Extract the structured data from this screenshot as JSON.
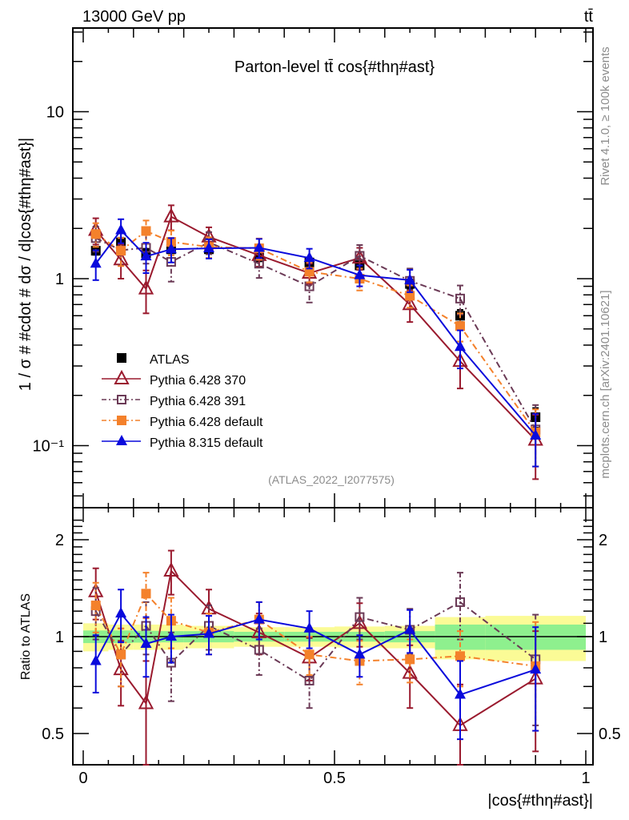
{
  "header": {
    "left": "13000 GeV pp",
    "right": "tt̄"
  },
  "side_labels": {
    "rivet": "Rivet 4.1.0, ≥ 100k events",
    "mcplots": "mcplots.cern.ch [arXiv:2401.10621]"
  },
  "chart_data": [
    {
      "type": "line",
      "panel": "main",
      "title": "Parton-level tt̄ cos{#thη#ast}",
      "analysis_id": "(ATLAS_2022_I2077575)",
      "xlabel": "|cos{#thη#ast}|",
      "ylabel": "1 / σ # #cdot # dσ / d|cos{#thη#ast}|",
      "xlim": [
        0,
        1
      ],
      "ylim": [
        0.045,
        30
      ],
      "yscale": "log",
      "ytick_labels": [
        "10",
        "1",
        "10⁻¹"
      ],
      "ytick_values": [
        10,
        1,
        0.1
      ],
      "legend_position": "left-middle",
      "x": [
        0.025,
        0.075,
        0.125,
        0.175,
        0.25,
        0.35,
        0.45,
        0.55,
        0.65,
        0.75,
        0.9
      ],
      "series": [
        {
          "name": "ATLAS",
          "color": "#000000",
          "marker": "filled-square",
          "line": "none",
          "values": [
            1.47,
            1.65,
            1.42,
            1.5,
            1.5,
            1.35,
            1.25,
            1.2,
            0.93,
            0.6,
            0.148
          ],
          "err": [
            0.08,
            0.1,
            0.09,
            0.08,
            0.08,
            0.08,
            0.07,
            0.07,
            0.06,
            0.05,
            0.02
          ]
        },
        {
          "name": "Pythia 6.428 370",
          "color": "#9a1a2e",
          "marker": "open-triangle",
          "line": "solid",
          "values": [
            1.95,
            1.3,
            0.87,
            2.35,
            1.78,
            1.38,
            1.08,
            1.33,
            0.7,
            0.32,
            0.108
          ],
          "err": [
            0.35,
            0.3,
            0.25,
            0.4,
            0.25,
            0.2,
            0.15,
            0.2,
            0.15,
            0.1,
            0.045
          ]
        },
        {
          "name": "Pythia 6.428 391",
          "color": "#6b3a56",
          "marker": "open-square",
          "line": "dash-dot",
          "values": [
            1.75,
            1.48,
            1.53,
            1.26,
            1.65,
            1.23,
            0.9,
            1.37,
            0.97,
            0.76,
            0.125
          ],
          "err": [
            0.3,
            0.28,
            0.3,
            0.3,
            0.25,
            0.22,
            0.18,
            0.22,
            0.18,
            0.15,
            0.05
          ]
        },
        {
          "name": "Pythia 6.428 default",
          "color": "#f4812b",
          "marker": "filled-square",
          "line": "dash-dot",
          "values": [
            1.85,
            1.47,
            1.93,
            1.66,
            1.55,
            1.52,
            1.1,
            1.0,
            0.79,
            0.52,
            0.12
          ],
          "err": [
            0.3,
            0.28,
            0.3,
            0.28,
            0.22,
            0.22,
            0.15,
            0.15,
            0.12,
            0.1,
            0.045
          ]
        },
        {
          "name": "Pythia 8.315 default",
          "color": "#0a0adc",
          "marker": "filled-triangle",
          "line": "solid",
          "values": [
            1.23,
            1.95,
            1.36,
            1.5,
            1.52,
            1.53,
            1.33,
            1.05,
            0.98,
            0.39,
            0.115
          ],
          "err": [
            0.25,
            0.32,
            0.28,
            0.25,
            0.2,
            0.2,
            0.18,
            0.15,
            0.15,
            0.1,
            0.04
          ]
        }
      ]
    },
    {
      "type": "line",
      "panel": "ratio",
      "ylabel": "Ratio to ATLAS",
      "xlabel": "|cos{#thη#ast}|",
      "xlim": [
        0,
        1
      ],
      "ylim": [
        0.4,
        2.4
      ],
      "yscale": "log",
      "xtick_labels": [
        "0",
        "0.5",
        "1"
      ],
      "xtick_values": [
        0,
        0.5,
        1
      ],
      "ytick_labels": [
        "2",
        "1",
        "0.5"
      ],
      "ytick_values": [
        2,
        1,
        0.5
      ],
      "x": [
        0.025,
        0.075,
        0.125,
        0.175,
        0.25,
        0.35,
        0.45,
        0.55,
        0.65,
        0.75,
        0.9
      ],
      "bin_edges": [
        0,
        0.05,
        0.1,
        0.15,
        0.2,
        0.3,
        0.4,
        0.5,
        0.6,
        0.7,
        0.8,
        1.0
      ],
      "bands": {
        "stat_color": "#8ef08e",
        "total_color": "#fbfb96",
        "stat_halfwidth": [
          0.045,
          0.045,
          0.042,
          0.04,
          0.04,
          0.035,
          0.035,
          0.035,
          0.04,
          0.09,
          0.09
        ],
        "total_halfwidth": [
          0.1,
          0.09,
          0.09,
          0.09,
          0.08,
          0.07,
          0.07,
          0.075,
          0.08,
          0.15,
          0.16
        ]
      },
      "series": [
        {
          "name": "Pythia 6.428 370",
          "color": "#9a1a2e",
          "marker": "open-triangle",
          "line": "solid",
          "values": [
            1.38,
            0.79,
            0.62,
            1.6,
            1.22,
            1.03,
            0.86,
            1.1,
            0.77,
            0.53,
            0.74
          ],
          "err": [
            0.25,
            0.18,
            0.22,
            0.25,
            0.18,
            0.15,
            0.13,
            0.17,
            0.17,
            0.18,
            0.3
          ]
        },
        {
          "name": "Pythia 6.428 391",
          "color": "#6b3a56",
          "marker": "open-square",
          "line": "dash-dot",
          "values": [
            1.2,
            0.88,
            1.08,
            0.83,
            1.08,
            0.91,
            0.73,
            1.15,
            1.05,
            1.28,
            0.85
          ],
          "err": [
            0.22,
            0.18,
            0.2,
            0.2,
            0.17,
            0.15,
            0.13,
            0.17,
            0.17,
            0.3,
            0.32
          ]
        },
        {
          "name": "Pythia 6.428 default",
          "color": "#f4812b",
          "marker": "filled-square",
          "line": "dash-dot",
          "values": [
            1.25,
            0.88,
            1.36,
            1.12,
            1.03,
            1.13,
            0.88,
            0.84,
            0.85,
            0.87,
            0.81
          ],
          "err": [
            0.22,
            0.18,
            0.22,
            0.2,
            0.15,
            0.15,
            0.12,
            0.13,
            0.13,
            0.17,
            0.3
          ]
        },
        {
          "name": "Pythia 8.315 default",
          "color": "#0a0adc",
          "marker": "filled-triangle",
          "line": "solid",
          "values": [
            0.84,
            1.18,
            0.95,
            1.0,
            1.02,
            1.13,
            1.06,
            0.88,
            1.05,
            0.66,
            0.79
          ],
          "err": [
            0.17,
            0.22,
            0.2,
            0.17,
            0.14,
            0.15,
            0.14,
            0.13,
            0.16,
            0.18,
            0.28
          ]
        }
      ]
    }
  ]
}
